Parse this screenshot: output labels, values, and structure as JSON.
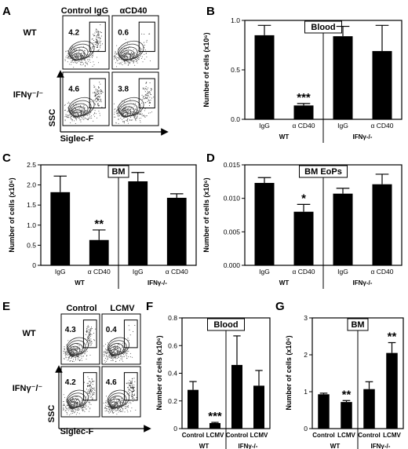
{
  "panel_labels": [
    "A",
    "B",
    "C",
    "D",
    "E",
    "F",
    "G"
  ],
  "flow_A": {
    "col_headers": [
      "Control IgG",
      "αCD40"
    ],
    "row_labels": [
      "WT",
      "IFNγ⁻/⁻"
    ],
    "values": [
      "4.2",
      "0.6",
      "4.6",
      "3.8"
    ],
    "y_axis": "SSC",
    "x_axis": "Siglec-F"
  },
  "flow_E": {
    "col_headers": [
      "Control",
      "LCMV"
    ],
    "row_labels": [
      "WT",
      "IFNγ⁻/⁻"
    ],
    "values": [
      "4.3",
      "0.4",
      "4.2",
      "4.6"
    ],
    "y_axis": "SSC",
    "x_axis": "Siglec-F"
  },
  "chart_data": [
    {
      "panel": "B",
      "type": "bar",
      "title": "Blood",
      "ylabel": "Number of cells (x10⁶)",
      "ylim": [
        0,
        1
      ],
      "yticks": [
        0,
        0.5,
        1
      ],
      "ytick_labels": [
        "0.0",
        "0.5",
        "1.0"
      ],
      "categories": [
        "IgG",
        "α CD40",
        "IgG",
        "α CD40"
      ],
      "groups": [
        "WT",
        "IFNγ-/-"
      ],
      "values": [
        0.85,
        0.14,
        0.84,
        0.69
      ],
      "errors": [
        0.1,
        0.02,
        0.1,
        0.26
      ],
      "annotations": [
        "",
        "***",
        "",
        ""
      ]
    },
    {
      "panel": "C",
      "type": "bar",
      "title": "BM",
      "ylabel": "Number of cells (x10⁶)",
      "ylim": [
        0,
        2.5
      ],
      "yticks": [
        0,
        0.5,
        1,
        1.5,
        2,
        2.5
      ],
      "ytick_labels": [
        "0",
        "0.5",
        "1.0",
        "1.5",
        "2.0",
        "2.5"
      ],
      "categories": [
        "IgG",
        "α CD40",
        "IgG",
        "α CD40"
      ],
      "groups": [
        "WT",
        "IFNγ-/-"
      ],
      "values": [
        1.82,
        0.63,
        2.09,
        1.68
      ],
      "errors": [
        0.4,
        0.25,
        0.22,
        0.1
      ],
      "annotations": [
        "",
        "**",
        "",
        ""
      ]
    },
    {
      "panel": "D",
      "type": "bar",
      "title": "BM EoPs",
      "ylabel": "Number of cells (x10⁶)",
      "ylim": [
        0,
        0.015
      ],
      "yticks": [
        0,
        0.005,
        0.01,
        0.015
      ],
      "ytick_labels": [
        "0.000",
        "0.005",
        "0.010",
        "0.015"
      ],
      "categories": [
        "IgG",
        "α CD40",
        "IgG",
        "α CD40"
      ],
      "groups": [
        "WT",
        "IFNγ-/-"
      ],
      "values": [
        0.0123,
        0.008,
        0.0107,
        0.0121
      ],
      "errors": [
        0.0008,
        0.0011,
        0.0008,
        0.0015
      ],
      "annotations": [
        "",
        "*",
        "",
        ""
      ]
    },
    {
      "panel": "F",
      "type": "bar",
      "title": "Blood",
      "ylabel": "Number of cells (x10⁶)",
      "ylim": [
        0,
        0.8
      ],
      "yticks": [
        0,
        0.2,
        0.4,
        0.6,
        0.8
      ],
      "ytick_labels": [
        "0",
        "0.2",
        "0.4",
        "0.6",
        "0.8"
      ],
      "categories": [
        "Control",
        "LCMV",
        "Control",
        "LCMV"
      ],
      "groups": [
        "WT",
        "IFNγ-/-"
      ],
      "values": [
        0.28,
        0.04,
        0.46,
        0.31
      ],
      "errors": [
        0.06,
        0.005,
        0.21,
        0.11
      ],
      "annotations": [
        "",
        "***",
        "",
        ""
      ]
    },
    {
      "panel": "G",
      "type": "bar",
      "title": "BM",
      "ylabel": "Number of cells (x10⁶)",
      "ylim": [
        0,
        3
      ],
      "yticks": [
        0,
        1,
        2,
        3
      ],
      "ytick_labels": [
        "0",
        "1",
        "2",
        "3"
      ],
      "categories": [
        "Control",
        "LCMV",
        "Control",
        "LCMV"
      ],
      "groups": [
        "WT",
        "IFNγ-/-"
      ],
      "values": [
        0.93,
        0.72,
        1.07,
        2.05
      ],
      "errors": [
        0.03,
        0.04,
        0.2,
        0.28
      ],
      "annotations": [
        "",
        "**",
        "",
        "**"
      ]
    }
  ]
}
